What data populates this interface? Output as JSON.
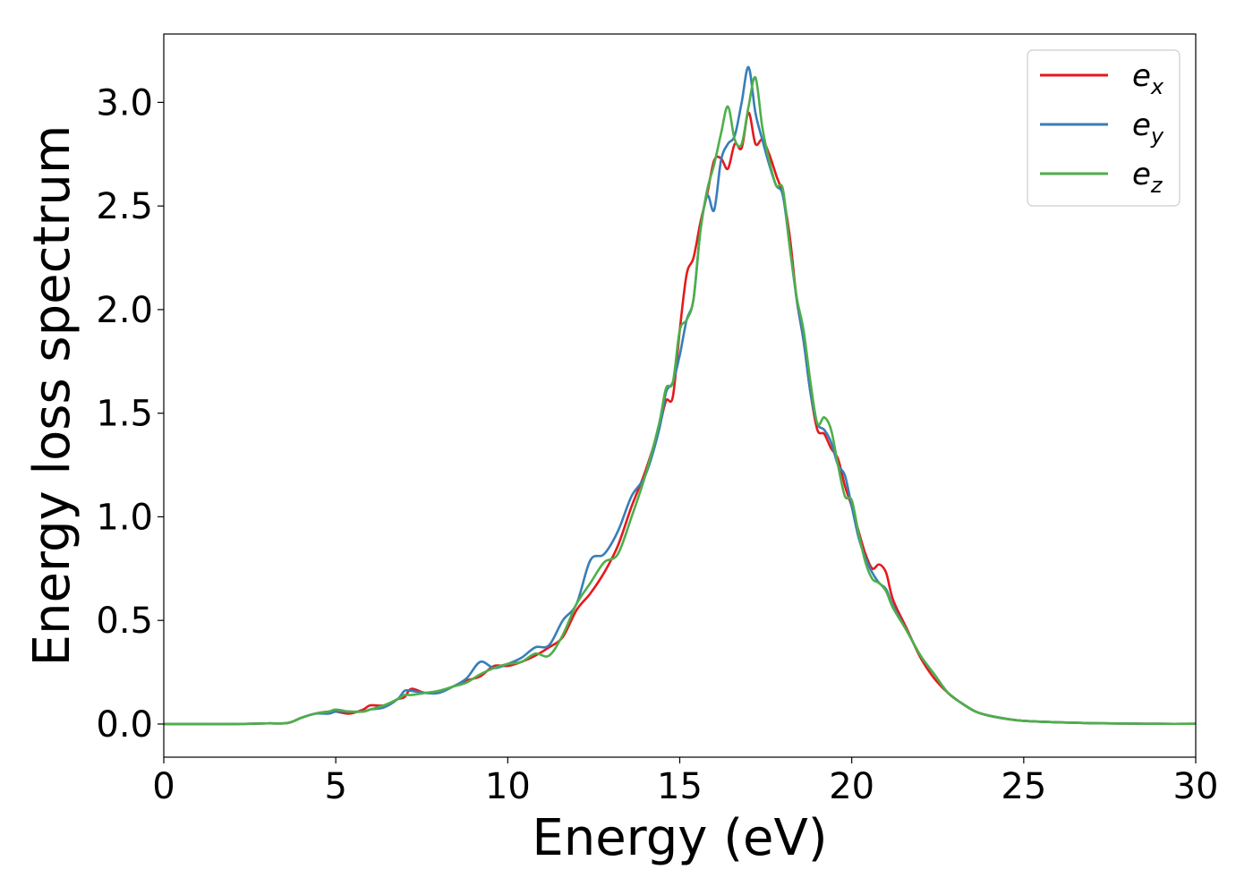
{
  "chart_data": {
    "type": "line",
    "title": "",
    "xlabel": "Energy (eV)",
    "ylabel": "Energy loss spectrum",
    "xlim": [
      0,
      30
    ],
    "ylim": [
      -0.16,
      3.33
    ],
    "xticks": [
      0,
      5,
      10,
      15,
      20,
      25,
      30
    ],
    "yticks": [
      0.0,
      0.5,
      1.0,
      1.5,
      2.0,
      2.5,
      3.0
    ],
    "xtick_labels": [
      "0",
      "5",
      "10",
      "15",
      "20",
      "25",
      "30"
    ],
    "ytick_labels": [
      "0.0",
      "0.5",
      "1.0",
      "1.5",
      "2.0",
      "2.5",
      "3.0"
    ],
    "grid": false,
    "legend_position": "top-right",
    "series": [
      {
        "name": "e",
        "subscript": "x",
        "color": "#e41a1c",
        "x": [
          0,
          1,
          2,
          3,
          3.6,
          4.0,
          4.4,
          4.8,
          5.0,
          5.4,
          5.8,
          6.0,
          6.4,
          6.8,
          7.0,
          7.2,
          7.6,
          8.0,
          8.4,
          8.8,
          9.2,
          9.6,
          10.0,
          10.4,
          10.8,
          11.2,
          11.6,
          12.0,
          12.4,
          12.8,
          13.2,
          13.6,
          14.0,
          14.4,
          14.6,
          14.8,
          15.0,
          15.2,
          15.4,
          15.6,
          15.8,
          16.0,
          16.2,
          16.4,
          16.6,
          16.8,
          17.0,
          17.2,
          17.4,
          17.6,
          17.8,
          18.0,
          18.2,
          18.4,
          18.6,
          18.8,
          19.0,
          19.2,
          19.4,
          19.6,
          19.8,
          20.0,
          20.2,
          20.4,
          20.6,
          20.8,
          21.0,
          21.2,
          21.6,
          22.0,
          22.4,
          22.8,
          23.2,
          23.6,
          24.0,
          24.5,
          25,
          26,
          27,
          28,
          29,
          30
        ],
        "values": [
          0.0,
          0.0,
          0.0,
          0.003,
          0.005,
          0.03,
          0.05,
          0.06,
          0.06,
          0.05,
          0.07,
          0.09,
          0.09,
          0.12,
          0.13,
          0.17,
          0.15,
          0.16,
          0.18,
          0.21,
          0.23,
          0.28,
          0.28,
          0.3,
          0.33,
          0.37,
          0.42,
          0.55,
          0.63,
          0.73,
          0.86,
          1.05,
          1.22,
          1.43,
          1.56,
          1.58,
          1.9,
          2.17,
          2.25,
          2.42,
          2.56,
          2.72,
          2.73,
          2.68,
          2.8,
          2.78,
          2.95,
          2.8,
          2.82,
          2.75,
          2.65,
          2.55,
          2.35,
          2.05,
          1.85,
          1.6,
          1.42,
          1.4,
          1.33,
          1.28,
          1.15,
          1.05,
          0.93,
          0.82,
          0.75,
          0.77,
          0.73,
          0.6,
          0.46,
          0.32,
          0.22,
          0.15,
          0.1,
          0.06,
          0.04,
          0.025,
          0.015,
          0.008,
          0.004,
          0.002,
          0.001,
          0.001
        ]
      },
      {
        "name": "e",
        "subscript": "y",
        "color": "#377eb8",
        "x": [
          0,
          1,
          2,
          3,
          3.6,
          4.0,
          4.4,
          4.8,
          5.0,
          5.4,
          5.8,
          6.0,
          6.4,
          6.8,
          7.0,
          7.2,
          7.6,
          8.0,
          8.4,
          8.8,
          9.2,
          9.6,
          10.0,
          10.4,
          10.8,
          11.2,
          11.6,
          12.0,
          12.4,
          12.8,
          13.2,
          13.6,
          14.0,
          14.4,
          14.6,
          14.8,
          15.0,
          15.2,
          15.4,
          15.6,
          15.8,
          16.0,
          16.2,
          16.4,
          16.6,
          16.8,
          17.0,
          17.2,
          17.4,
          17.6,
          17.8,
          18.0,
          18.2,
          18.4,
          18.6,
          18.8,
          19.0,
          19.2,
          19.4,
          19.6,
          19.8,
          20.0,
          20.2,
          20.4,
          20.6,
          20.8,
          21.0,
          21.2,
          21.6,
          22.0,
          22.4,
          22.8,
          23.2,
          23.6,
          24.0,
          24.5,
          25,
          26,
          27,
          28,
          29,
          30
        ],
        "values": [
          0.0,
          0.0,
          0.0,
          0.003,
          0.005,
          0.03,
          0.05,
          0.05,
          0.06,
          0.06,
          0.06,
          0.07,
          0.08,
          0.12,
          0.16,
          0.16,
          0.15,
          0.15,
          0.18,
          0.22,
          0.3,
          0.27,
          0.29,
          0.32,
          0.37,
          0.38,
          0.5,
          0.58,
          0.79,
          0.82,
          0.93,
          1.1,
          1.2,
          1.42,
          1.6,
          1.65,
          1.78,
          1.95,
          2.05,
          2.38,
          2.55,
          2.48,
          2.72,
          2.8,
          2.84,
          3.0,
          3.17,
          2.95,
          2.82,
          2.7,
          2.6,
          2.55,
          2.3,
          2.05,
          1.85,
          1.6,
          1.45,
          1.42,
          1.36,
          1.25,
          1.2,
          1.05,
          0.9,
          0.8,
          0.73,
          0.68,
          0.65,
          0.57,
          0.45,
          0.33,
          0.24,
          0.15,
          0.1,
          0.06,
          0.04,
          0.025,
          0.015,
          0.008,
          0.004,
          0.002,
          0.001,
          0.001
        ]
      },
      {
        "name": "e",
        "subscript": "z",
        "color": "#4daf4a",
        "x": [
          0,
          1,
          2,
          3,
          3.6,
          4.0,
          4.4,
          4.8,
          5.0,
          5.4,
          5.8,
          6.0,
          6.4,
          6.8,
          7.0,
          7.2,
          7.6,
          8.0,
          8.4,
          8.8,
          9.2,
          9.6,
          10.0,
          10.4,
          10.8,
          11.2,
          11.6,
          12.0,
          12.4,
          12.8,
          13.2,
          13.6,
          14.0,
          14.4,
          14.6,
          14.8,
          15.0,
          15.2,
          15.4,
          15.6,
          15.8,
          16.0,
          16.2,
          16.4,
          16.6,
          16.8,
          17.0,
          17.2,
          17.4,
          17.6,
          17.8,
          18.0,
          18.2,
          18.4,
          18.6,
          18.8,
          19.0,
          19.2,
          19.4,
          19.6,
          19.8,
          20.0,
          20.2,
          20.4,
          20.6,
          20.8,
          21.0,
          21.2,
          21.6,
          22.0,
          22.4,
          22.8,
          23.2,
          23.6,
          24.0,
          24.5,
          25,
          26,
          27,
          28,
          29,
          30
        ],
        "values": [
          0.0,
          0.0,
          0.0,
          0.003,
          0.005,
          0.03,
          0.05,
          0.06,
          0.07,
          0.06,
          0.06,
          0.07,
          0.09,
          0.12,
          0.14,
          0.14,
          0.15,
          0.16,
          0.18,
          0.2,
          0.24,
          0.27,
          0.29,
          0.3,
          0.34,
          0.33,
          0.43,
          0.58,
          0.68,
          0.78,
          0.82,
          1.0,
          1.2,
          1.45,
          1.62,
          1.65,
          1.9,
          1.95,
          2.05,
          2.38,
          2.58,
          2.7,
          2.85,
          2.98,
          2.82,
          2.8,
          2.98,
          3.12,
          2.88,
          2.72,
          2.6,
          2.58,
          2.3,
          2.06,
          1.9,
          1.65,
          1.45,
          1.48,
          1.42,
          1.25,
          1.1,
          1.08,
          0.92,
          0.78,
          0.7,
          0.68,
          0.64,
          0.56,
          0.45,
          0.33,
          0.24,
          0.15,
          0.1,
          0.06,
          0.04,
          0.025,
          0.015,
          0.008,
          0.004,
          0.002,
          0.001,
          0.001
        ]
      }
    ]
  }
}
